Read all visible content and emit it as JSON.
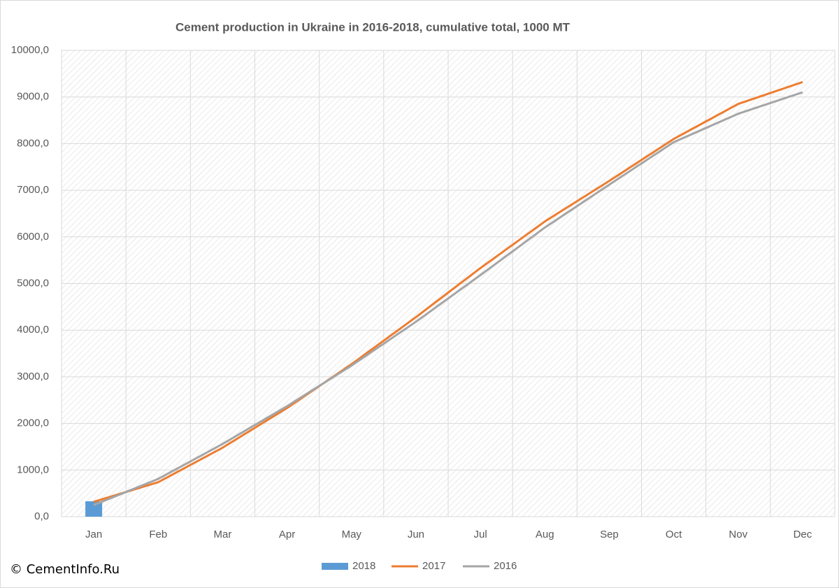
{
  "chart_data": {
    "type": "line",
    "title": "Cement production in Ukraine in 2016-2018, cumulative total, 1000 MT",
    "source": "© CementInfo.Ru",
    "categories": [
      "Jan",
      "Feb",
      "Mar",
      "Apr",
      "May",
      "Jun",
      "Jul",
      "Aug",
      "Sep",
      "Oct",
      "Nov",
      "Dec"
    ],
    "series": [
      {
        "name": "2018",
        "type": "bar",
        "color": "#5b9bd5",
        "values": [
          330,
          null,
          null,
          null,
          null,
          null,
          null,
          null,
          null,
          null,
          null,
          null
        ]
      },
      {
        "name": "2017",
        "type": "line",
        "color": "#ed7d31",
        "values": [
          320,
          740,
          1480,
          2330,
          3270,
          4280,
          5330,
          6330,
          7200,
          8100,
          8850,
          9320
        ]
      },
      {
        "name": "2016",
        "type": "line",
        "color": "#a5a5a5",
        "values": [
          250,
          810,
          1560,
          2370,
          3240,
          4180,
          5180,
          6200,
          7120,
          8030,
          8640,
          9100
        ]
      }
    ],
    "ylim": [
      0,
      10000
    ],
    "yticks": [
      {
        "value": 0,
        "label": "0,0"
      },
      {
        "value": 1000,
        "label": "1000,0"
      },
      {
        "value": 2000,
        "label": "2000,0"
      },
      {
        "value": 3000,
        "label": "3000,0"
      },
      {
        "value": 4000,
        "label": "4000,0"
      },
      {
        "value": 5000,
        "label": "5000,0"
      },
      {
        "value": 6000,
        "label": "6000,0"
      },
      {
        "value": 7000,
        "label": "7000,0"
      },
      {
        "value": 8000,
        "label": "8000,0"
      },
      {
        "value": 9000,
        "label": "9000,0"
      },
      {
        "value": 10000,
        "label": "10000,0"
      }
    ],
    "grid": true,
    "legend": "bottom"
  }
}
